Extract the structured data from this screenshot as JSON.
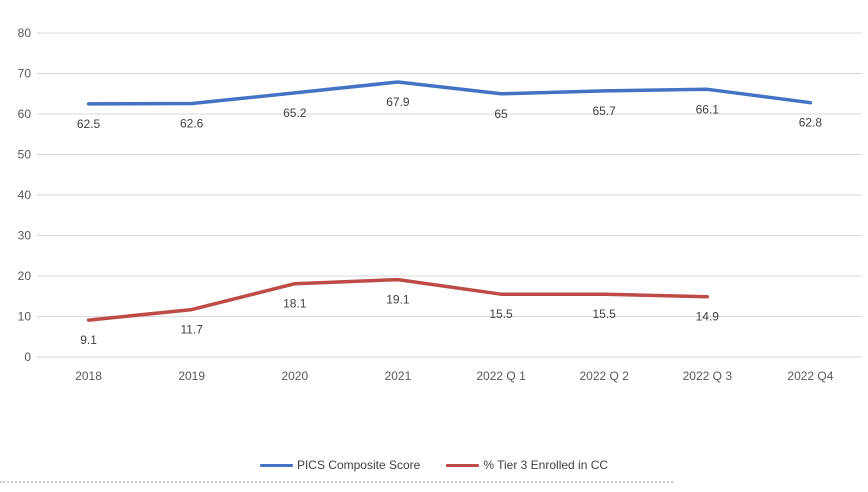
{
  "chart_data": {
    "type": "line",
    "categories": [
      "2018",
      "2019",
      "2020",
      "2021",
      "2022 Q 1",
      "2022 Q 2",
      "2022 Q 3",
      "2022 Q4"
    ],
    "series": [
      {
        "name": "PICS Composite Score",
        "color": "#4472C4",
        "values": [
          62.5,
          62.6,
          65.2,
          67.9,
          65,
          65.7,
          66.1,
          62.8
        ],
        "labels": [
          "62.5",
          "62.6",
          "65.2",
          "67.9",
          "65",
          "65.7",
          "66.1",
          "62.8"
        ]
      },
      {
        "name": "% Tier 3 Enrolled in CC",
        "color": "#BE4B48",
        "values": [
          9.1,
          11.7,
          18.1,
          19.1,
          15.5,
          15.5,
          14.9,
          null
        ],
        "labels": [
          "9.1",
          "11.7",
          "18.1",
          "19.1",
          "15.5",
          "15.5",
          "14.9",
          null
        ]
      }
    ],
    "title": "",
    "xlabel": "",
    "ylabel": "",
    "ylim": [
      0,
      80
    ],
    "yticks": [
      "0",
      "10",
      "20",
      "30",
      "40",
      "50",
      "60",
      "70",
      "80"
    ],
    "grid": true,
    "legend_position": "bottom"
  },
  "colors": {
    "grid": "#D9D9D9",
    "axis_text": "#595959",
    "label_text": "#404040",
    "background": "#FFFFFF",
    "marquee": "#C9C9C9"
  }
}
